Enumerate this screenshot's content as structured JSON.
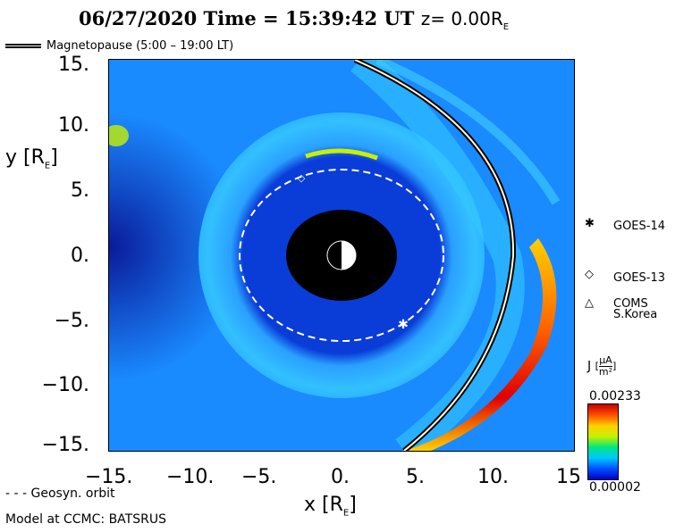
{
  "header": {
    "date": "06/27/2020",
    "time_label": "Time =",
    "time": "15:39:42 UT",
    "plane_prefix": "z=",
    "plane_value": "0.00R",
    "plane_sub": "E"
  },
  "legend": {
    "magnetopause": "Magnetopause (5:00 – 19:00 LT)",
    "geosync": "- - - Geosyn. orbit",
    "model": "Model at CCMC: BATSRUS"
  },
  "axes": {
    "x_label": "x [R",
    "x_label_sub": "E",
    "x_label_end": "]",
    "y_label": "y [R",
    "y_label_sub": "E",
    "y_label_end": "]",
    "x_ticks": [
      "−15.",
      "−10.",
      "−5.",
      "0.",
      "5.",
      "10.",
      "15"
    ],
    "y_ticks": [
      "15.",
      "10.",
      "5.",
      "0.",
      "−5.",
      "−10.",
      "−15."
    ]
  },
  "satellites": [
    {
      "symbol": "✱",
      "label": "GOES-14"
    },
    {
      "symbol": "◇",
      "label": "GOES-13"
    },
    {
      "symbol": "△",
      "label": "COMS",
      "label2": "S.Korea"
    }
  ],
  "colorbar": {
    "quantity": "J",
    "unit_num": "μA",
    "unit_den": "m²",
    "max": "0.00233",
    "min": "0.00002",
    "colors": [
      "#0000c8",
      "#0050ff",
      "#00c8ff",
      "#00e880",
      "#c8f000",
      "#ffd000",
      "#ff5000",
      "#c80000"
    ]
  },
  "plot": {
    "background_color": "#1a8aff",
    "geosync_radius_re": 6.6,
    "earth_radius_re": 1.0,
    "inner_boundary_re": 3.5
  }
}
